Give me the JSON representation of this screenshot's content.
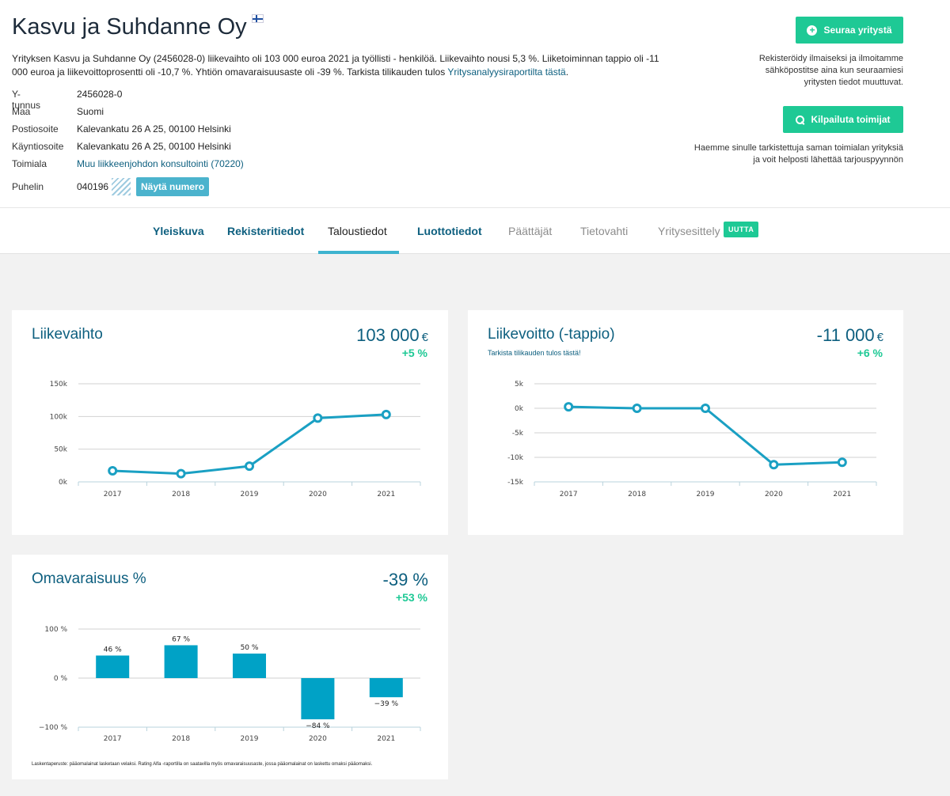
{
  "company": {
    "name": "Kasvu ja Suhdanne Oy",
    "summary_text": "Yrityksen Kasvu ja Suhdanne Oy (2456028-0) liikevaihto oli 103 000 euroa 2021 ja työllisti - henkilöä. Liikevaihto nousi 5,3 %. Liiketoiminnan tappio oli -11 000 euroa ja liikevoittoprosentti oli -10,7 %. Yhtiön omavaraisuusaste oli -39 %. Tarkista tilikauden tulos ",
    "summary_link": "Yritysanalyysiraportilta tästä",
    "summary_end": "."
  },
  "info": {
    "ytunnus_label": "Y-tunnus",
    "ytunnus": "2456028-0",
    "maa_label": "Maa",
    "maa": "Suomi",
    "posti_label": "Postiosoite",
    "posti": "Kalevankatu 26 A 25, 00100 Helsinki",
    "kaynti_label": "Käyntiosoite",
    "kaynti": "Kalevankatu 26 A 25, 00100 Helsinki",
    "toimiala_label": "Toimiala",
    "toimiala": "Muu liikkeenjohdon konsultointi (70220)",
    "puhelin_label": "Puhelin",
    "puhelin": "040196",
    "show_number": "Näytä numero"
  },
  "actions": {
    "follow_label": "Seuraa yritystä",
    "follow_note": "Rekisteröidy ilmaiseksi ja ilmoitamme sähköpostitse aina kun seuraamiesi yritysten tiedot muuttuvat.",
    "bid_label": "Kilpailuta toimijat",
    "bid_note": "Haemme sinulle tarkistettuja saman toimialan yrityksiä ja voit helposti lähettää tarjouspyynnön"
  },
  "tabs": {
    "yleiskuva": "Yleiskuva",
    "rekisteri": "Rekisteritiedot",
    "talous": "Taloustiedot",
    "luotto": "Luottotiedot",
    "paattajat": "Päättäjät",
    "tietovahti": "Tietovahti",
    "esittely": "Yritysesittely",
    "new_badge": "UUTTA"
  },
  "colors": {
    "accent": "#1ec995",
    "link": "#0d5f7f",
    "series": "#1aa0c3",
    "bar": "#00a2c6"
  },
  "cards": {
    "revenue": {
      "title": "Liikevaihto",
      "value": "103 000",
      "currency": "€",
      "change": "+5 %"
    },
    "profit": {
      "title": "Liikevoitto (-tappio)",
      "value": "-11 000",
      "currency": "€",
      "change": "+6 %",
      "link": "Tarkista tilikauden tulos tästä!"
    },
    "equity": {
      "title": "Omavaraisuus %",
      "value": "-39 %",
      "change": "+53 %",
      "footnote": "Laskentaperuste: pääomalainat lasketaan velaksi. Rating Alfa -raportilla on saatavilla myös omavaraisuusaste, jossa pääomalainat on laskettu omaksi pääomaksi."
    }
  },
  "chart_data": [
    {
      "type": "line",
      "title": "Liikevaihto",
      "x": [
        "2017",
        "2018",
        "2019",
        "2020",
        "2021"
      ],
      "values": [
        17000,
        12500,
        24000,
        97500,
        103000
      ],
      "yticks": [
        0,
        50000,
        100000,
        150000
      ],
      "ytick_labels": [
        "0k",
        "50k",
        "100k",
        "150k"
      ],
      "ylim": [
        0,
        150000
      ],
      "grid": true
    },
    {
      "type": "line",
      "title": "Liikevoitto (-tappio)",
      "x": [
        "2017",
        "2018",
        "2019",
        "2020",
        "2021"
      ],
      "values": [
        300,
        0,
        0,
        -11500,
        -11000
      ],
      "yticks": [
        5000,
        0,
        -5000,
        -10000,
        -15000
      ],
      "ytick_labels": [
        "5k",
        "0k",
        "-5k",
        "-10k",
        "-15k"
      ],
      "ylim": [
        -15000,
        5000
      ],
      "grid": true
    },
    {
      "type": "bar",
      "title": "Omavaraisuus %",
      "categories": [
        "2017",
        "2018",
        "2019",
        "2020",
        "2021"
      ],
      "values": [
        46,
        67,
        50,
        -84,
        -39
      ],
      "data_labels": [
        "46 %",
        "67 %",
        "50 %",
        "−84 %",
        "−39 %"
      ],
      "yticks": [
        100,
        0,
        -100
      ],
      "ytick_labels": [
        "100 %",
        "0 %",
        "−100 %"
      ],
      "ylim": [
        -100,
        100
      ],
      "grid": true
    }
  ]
}
